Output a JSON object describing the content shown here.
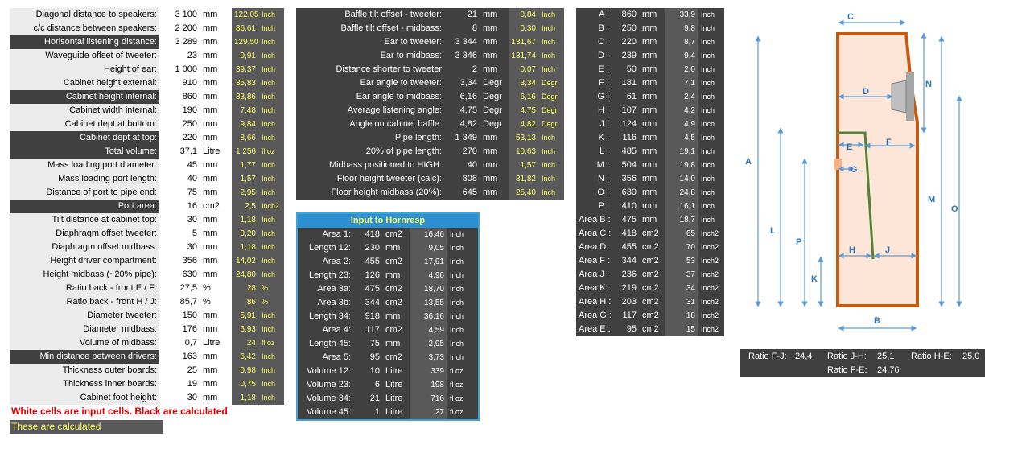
{
  "left_table": [
    {
      "label": "Diagonal distance to speakers:",
      "value": "3 100",
      "unit": "mm",
      "calc": "122,05",
      "calc_unit": "Inch",
      "dark": false
    },
    {
      "label": "c/c distance between speakers:",
      "value": "2 200",
      "unit": "mm",
      "calc": "86,61",
      "calc_unit": "Inch",
      "dark": false
    },
    {
      "label": "Horisontal listening distance:",
      "value": "3 289",
      "unit": "mm",
      "calc": "129,50",
      "calc_unit": "Inch",
      "dark": true
    },
    {
      "label": "Waveguide offset of tweeter:",
      "value": "23",
      "unit": "mm",
      "calc": "0,91",
      "calc_unit": "Inch",
      "dark": false
    },
    {
      "label": "Height of ear:",
      "value": "1 000",
      "unit": "mm",
      "calc": "39,37",
      "calc_unit": "Inch",
      "dark": false
    },
    {
      "label": "Cabinet height external:",
      "value": "910",
      "unit": "mm",
      "calc": "35,83",
      "calc_unit": "Inch",
      "dark": false
    },
    {
      "label": "Cabinet height internal:",
      "value": "860",
      "unit": "mm",
      "calc": "33,86",
      "calc_unit": "Inch",
      "dark": true
    },
    {
      "label": "Cabinet width internal:",
      "value": "190",
      "unit": "mm",
      "calc": "7,48",
      "calc_unit": "Inch",
      "dark": false
    },
    {
      "label": "Cabinet dept at bottom:",
      "value": "250",
      "unit": "mm",
      "calc": "9,84",
      "calc_unit": "Inch",
      "dark": false
    },
    {
      "label": "Cabinet dept at top:",
      "value": "220",
      "unit": "mm",
      "calc": "8,66",
      "calc_unit": "Inch",
      "dark": true
    },
    {
      "label": "Total volume:",
      "value": "37,1",
      "unit": "Litre",
      "calc": "1 256",
      "calc_unit": "fl oz",
      "dark": true
    },
    {
      "label": "Mass loading port diameter:",
      "value": "45",
      "unit": "mm",
      "calc": "1,77",
      "calc_unit": "Inch",
      "dark": false
    },
    {
      "label": "Mass loading port length:",
      "value": "40",
      "unit": "mm",
      "calc": "1,57",
      "calc_unit": "Inch",
      "dark": false
    },
    {
      "label": "Distance of port to pipe end:",
      "value": "75",
      "unit": "mm",
      "calc": "2,95",
      "calc_unit": "Inch",
      "dark": false
    },
    {
      "label": "Port area:",
      "value": "16",
      "unit": "cm2",
      "calc": "2,5",
      "calc_unit": "Inch2",
      "dark": true
    },
    {
      "label": "Tilt distance at cabinet top:",
      "value": "30",
      "unit": "mm",
      "calc": "1,18",
      "calc_unit": "Inch",
      "dark": false
    },
    {
      "label": "Diaphragm offset tweeter:",
      "value": "5",
      "unit": "mm",
      "calc": "0,20",
      "calc_unit": "Inch",
      "dark": false
    },
    {
      "label": "Diaphragm offset midbass:",
      "value": "30",
      "unit": "mm",
      "calc": "1,18",
      "calc_unit": "Inch",
      "dark": false
    },
    {
      "label": "Height driver compartment:",
      "value": "356",
      "unit": "mm",
      "calc": "14,02",
      "calc_unit": "Inch",
      "dark": false
    },
    {
      "label": "Height midbass (~20% pipe):",
      "value": "630",
      "unit": "mm",
      "calc": "24,80",
      "calc_unit": "Inch",
      "dark": false
    },
    {
      "label": "Ratio back - front E / F:",
      "value": "27,5",
      "unit": "%",
      "calc": "28",
      "calc_unit": "%",
      "dark": false
    },
    {
      "label": "Ratio back - front H / J:",
      "value": "85,7",
      "unit": "%",
      "calc": "86",
      "calc_unit": "%",
      "dark": false
    },
    {
      "label": "Diameter tweeter:",
      "value": "150",
      "unit": "mm",
      "calc": "5,91",
      "calc_unit": "Inch",
      "dark": false
    },
    {
      "label": "Diameter midbass:",
      "value": "176",
      "unit": "mm",
      "calc": "6,93",
      "calc_unit": "Inch",
      "dark": false
    },
    {
      "label": "Volume of midbass:",
      "value": "0,7",
      "unit": "Litre",
      "calc": "24",
      "calc_unit": "fl oz",
      "dark": false
    },
    {
      "label": "Min distance between drivers:",
      "value": "163",
      "unit": "mm",
      "calc": "6,42",
      "calc_unit": "Inch",
      "dark": true
    },
    {
      "label": "Thickness outer boards:",
      "value": "25",
      "unit": "mm",
      "calc": "0,98",
      "calc_unit": "Inch",
      "dark": false
    },
    {
      "label": "Thickness inner boards:",
      "value": "19",
      "unit": "mm",
      "calc": "0,75",
      "calc_unit": "Inch",
      "dark": false
    },
    {
      "label": "Cabinet foot height:",
      "value": "30",
      "unit": "mm",
      "calc": "1,18",
      "calc_unit": "Inch",
      "dark": false
    }
  ],
  "mid_table": [
    {
      "label": "Baffle tilt offset - tweeter:",
      "value": "21",
      "unit": "mm",
      "calc": "0,84",
      "calc_unit": "Inch"
    },
    {
      "label": "Baffle tilt offset - midbass:",
      "value": "8",
      "unit": "mm",
      "calc": "0,30",
      "calc_unit": "Inch"
    },
    {
      "label": "Ear to tweeter:",
      "value": "3 344",
      "unit": "mm",
      "calc": "131,67",
      "calc_unit": "Inch"
    },
    {
      "label": "Ear to midbass:",
      "value": "3 346",
      "unit": "mm",
      "calc": "131,74",
      "calc_unit": "Inch"
    },
    {
      "label": "Distance shorter to tweeter",
      "value": "2",
      "unit": "mm",
      "calc": "0,07",
      "calc_unit": "Inch"
    },
    {
      "label": "Ear angle to tweeter:",
      "value": "3,34",
      "unit": "Degr",
      "calc": "3,34",
      "calc_unit": "Degr"
    },
    {
      "label": "Ear angle to midbass:",
      "value": "6,16",
      "unit": "Degr",
      "calc": "6,16",
      "calc_unit": "Degr"
    },
    {
      "label": "Average listening angle:",
      "value": "4,75",
      "unit": "Degr",
      "calc": "4,75",
      "calc_unit": "Degr"
    },
    {
      "label": "Angle on cabinet baffle:",
      "value": "4,82",
      "unit": "Degr",
      "calc": "4,82",
      "calc_unit": "Degr"
    },
    {
      "label": "Pipe length:",
      "value": "1 349",
      "unit": "mm",
      "calc": "53,13",
      "calc_unit": "Inch"
    },
    {
      "label": "20% of pipe length:",
      "value": "270",
      "unit": "mm",
      "calc": "10,63",
      "calc_unit": "Inch"
    },
    {
      "label": "Midbass positioned to HIGH:",
      "value": "40",
      "unit": "mm",
      "calc": "1,57",
      "calc_unit": "Inch"
    },
    {
      "label": "Floor height tweeter (calc):",
      "value": "808",
      "unit": "mm",
      "calc": "31,82",
      "calc_unit": "Inch"
    },
    {
      "label": "Floor height midbass (20%):",
      "value": "645",
      "unit": "mm",
      "calc": "25,40",
      "calc_unit": "Inch"
    }
  ],
  "hornresp": {
    "title": "Input to Hornresp",
    "rows": [
      {
        "label": "Area 1:",
        "value": "418",
        "unit": "cm2",
        "calc": "16,46",
        "calc_unit": "Inch"
      },
      {
        "label": "Length 12:",
        "value": "230",
        "unit": "mm",
        "calc": "9,05",
        "calc_unit": "Inch"
      },
      {
        "label": "Area 2:",
        "value": "455",
        "unit": "cm2",
        "calc": "17,91",
        "calc_unit": "Inch"
      },
      {
        "label": "Length 23:",
        "value": "126",
        "unit": "mm",
        "calc": "4,96",
        "calc_unit": "Inch"
      },
      {
        "label": "Area 3a:",
        "value": "475",
        "unit": "cm2",
        "calc": "18,70",
        "calc_unit": "Inch"
      },
      {
        "label": "Area 3b:",
        "value": "344",
        "unit": "cm2",
        "calc": "13,55",
        "calc_unit": "Inch"
      },
      {
        "label": "Length 34:",
        "value": "918",
        "unit": "mm",
        "calc": "36,16",
        "calc_unit": "Inch"
      },
      {
        "label": "Area 4:",
        "value": "117",
        "unit": "cm2",
        "calc": "4,59",
        "calc_unit": "Inch"
      },
      {
        "label": "Length 45:",
        "value": "75",
        "unit": "mm",
        "calc": "2,95",
        "calc_unit": "Inch"
      },
      {
        "label": "Area 5:",
        "value": "95",
        "unit": "cm2",
        "calc": "3,73",
        "calc_unit": "Inch"
      },
      {
        "label": "Volume 12:",
        "value": "10",
        "unit": "Litre",
        "calc": "339",
        "calc_unit": "fl oz"
      },
      {
        "label": "Volume 23:",
        "value": "6",
        "unit": "Litre",
        "calc": "198",
        "calc_unit": "fl oz"
      },
      {
        "label": "Volume 34:",
        "value": "21",
        "unit": "Litre",
        "calc": "716",
        "calc_unit": "fl oz"
      },
      {
        "label": "Volume 45:",
        "value": "1",
        "unit": "Litre",
        "calc": "27",
        "calc_unit": "fl oz"
      }
    ]
  },
  "dims_table": [
    {
      "label": "A :",
      "value": "860",
      "unit": "mm",
      "calc": "33,9",
      "calc_unit": "Inch"
    },
    {
      "label": "B :",
      "value": "250",
      "unit": "mm",
      "calc": "9,8",
      "calc_unit": "Inch"
    },
    {
      "label": "C :",
      "value": "220",
      "unit": "mm",
      "calc": "8,7",
      "calc_unit": "Inch"
    },
    {
      "label": "D :",
      "value": "239",
      "unit": "mm",
      "calc": "9,4",
      "calc_unit": "Inch"
    },
    {
      "label": "E :",
      "value": "50",
      "unit": "mm",
      "calc": "2,0",
      "calc_unit": "Inch"
    },
    {
      "label": "F :",
      "value": "181",
      "unit": "mm",
      "calc": "7,1",
      "calc_unit": "Inch"
    },
    {
      "label": "G :",
      "value": "61",
      "unit": "mm",
      "calc": "2,4",
      "calc_unit": "Inch"
    },
    {
      "label": "H :",
      "value": "107",
      "unit": "mm",
      "calc": "4,2",
      "calc_unit": "Inch"
    },
    {
      "label": "J :",
      "value": "124",
      "unit": "mm",
      "calc": "4,9",
      "calc_unit": "Inch"
    },
    {
      "label": "K :",
      "value": "116",
      "unit": "mm",
      "calc": "4,5",
      "calc_unit": "Inch"
    },
    {
      "label": "L :",
      "value": "485",
      "unit": "mm",
      "calc": "19,1",
      "calc_unit": "Inch"
    },
    {
      "label": "M :",
      "value": "504",
      "unit": "mm",
      "calc": "19,8",
      "calc_unit": "Inch"
    },
    {
      "label": "N :",
      "value": "356",
      "unit": "mm",
      "calc": "14,0",
      "calc_unit": "Inch"
    },
    {
      "label": "O :",
      "value": "630",
      "unit": "mm",
      "calc": "24,8",
      "calc_unit": "Inch"
    },
    {
      "label": "P :",
      "value": "410",
      "unit": "mm",
      "calc": "16,1",
      "calc_unit": "Inch"
    },
    {
      "label": "Area B :",
      "value": "475",
      "unit": "mm",
      "calc": "18,7",
      "calc_unit": "Inch"
    },
    {
      "label": "Area C :",
      "value": "418",
      "unit": "cm2",
      "calc": "65",
      "calc_unit": "Inch2"
    },
    {
      "label": "Area D :",
      "value": "455",
      "unit": "cm2",
      "calc": "70",
      "calc_unit": "Inch2"
    },
    {
      "label": "Area F :",
      "value": "344",
      "unit": "cm2",
      "calc": "53",
      "calc_unit": "Inch2"
    },
    {
      "label": "Area J :",
      "value": "236",
      "unit": "cm2",
      "calc": "37",
      "calc_unit": "Inch2"
    },
    {
      "label": "Area K :",
      "value": "219",
      "unit": "cm2",
      "calc": "34",
      "calc_unit": "Inch2"
    },
    {
      "label": "Area H :",
      "value": "203",
      "unit": "cm2",
      "calc": "31",
      "calc_unit": "Inch2"
    },
    {
      "label": "Area G :",
      "value": "117",
      "unit": "cm2",
      "calc": "18",
      "calc_unit": "Inch2"
    },
    {
      "label": "Area E :",
      "value": "95",
      "unit": "cm2",
      "calc": "15",
      "calc_unit": "Inch2"
    }
  ],
  "notes": {
    "input_note": "White cells are input cells. Black are calculated",
    "calc_note": "These are calculated"
  },
  "ratios": {
    "fj_label": "Ratio F-J:",
    "fj_value": "24,4",
    "jh_label": "Ratio J-H:",
    "jh_value": "25,1",
    "he_label": "Ratio H-E:",
    "he_value": "25,0",
    "fe_label": "Ratio F-E:",
    "fe_value": "24,76"
  },
  "diagram": {
    "letters": {
      "A": "A",
      "B": "B",
      "C": "C",
      "D": "D",
      "E": "E",
      "F": "F",
      "G": "G",
      "H": "H",
      "J": "J",
      "K": "K",
      "L": "L",
      "M": "M",
      "N": "N",
      "O": "O",
      "P": "P"
    },
    "colors": {
      "cabinet_fill": "#fde5d8",
      "cabinet_stroke": "#c55a11",
      "inner_board": "#548235",
      "arrow": "#5b9bd5",
      "driver": "#a6a6a6",
      "port": "#f4b183"
    }
  }
}
